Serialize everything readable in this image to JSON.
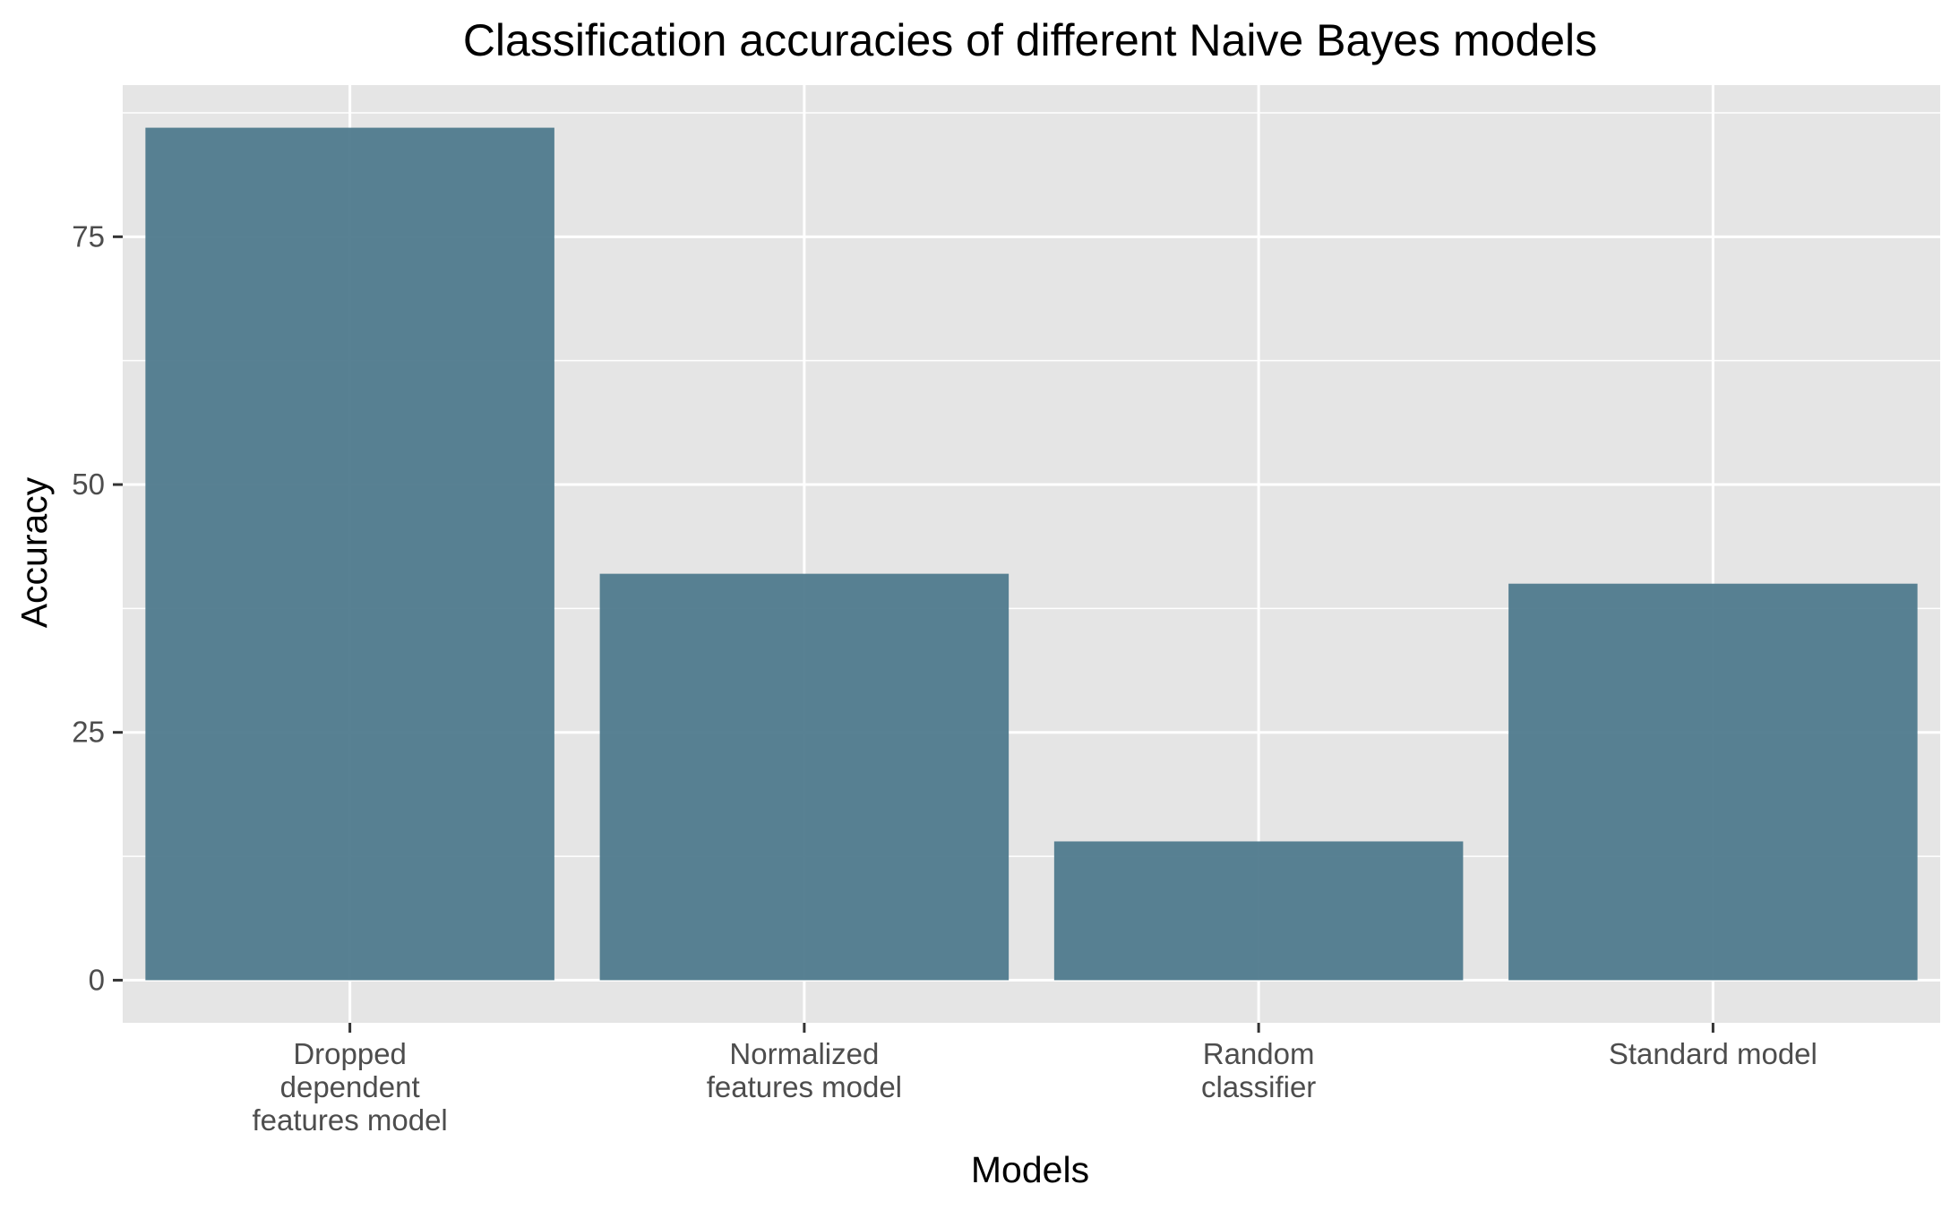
{
  "chart_data": {
    "type": "bar",
    "title": "Classification accuracies of different Naive Bayes models",
    "xlabel": "Models",
    "ylabel": "Accuracy",
    "categories": [
      [
        "Dropped",
        "dependent",
        "features model"
      ],
      [
        "Normalized",
        "features model"
      ],
      [
        "Random",
        "classifier"
      ],
      [
        "Standard model"
      ]
    ],
    "values": [
      86,
      41,
      14,
      40
    ],
    "yticks": [
      0,
      25,
      50,
      75
    ],
    "ylim": [
      -4.3,
      90.3
    ],
    "grid": true,
    "legend": "none",
    "colors": {
      "bar": "#4f7a8d",
      "panel": "#e5e5e5",
      "grid": "#ffffff"
    }
  }
}
